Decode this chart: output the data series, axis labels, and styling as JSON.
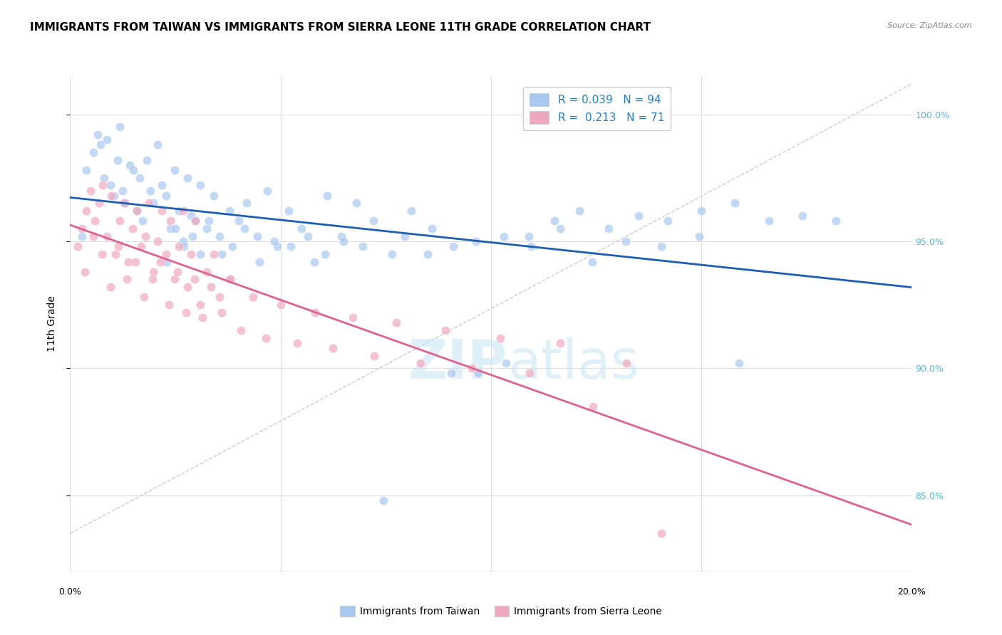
{
  "title": "IMMIGRANTS FROM TAIWAN VS IMMIGRANTS FROM SIERRA LEONE 11TH GRADE CORRELATION CHART",
  "source": "Source: ZipAtlas.com",
  "ylabel": "11th Grade",
  "y_ticks": [
    85.0,
    90.0,
    95.0,
    100.0
  ],
  "y_tick_labels": [
    "85.0%",
    "90.0%",
    "95.0%",
    "100.0%"
  ],
  "x_range": [
    0.0,
    20.0
  ],
  "y_range": [
    82.0,
    101.5
  ],
  "taiwan_R": 0.039,
  "taiwan_N": 94,
  "sierra_leone_R": 0.213,
  "sierra_leone_N": 71,
  "taiwan_color": "#a8c8f0",
  "sierra_leone_color": "#f0a8c0",
  "taiwan_line_color": "#1a5fb4",
  "sierra_leone_line_color": "#e06090",
  "legend_r_color": "#1a7fd4",
  "background_color": "#ffffff",
  "taiwan_x": [
    0.28,
    0.38,
    0.55,
    0.65,
    0.72,
    0.8,
    0.88,
    0.95,
    1.05,
    1.12,
    1.18,
    1.25,
    1.32,
    1.42,
    1.5,
    1.58,
    1.65,
    1.72,
    1.82,
    1.9,
    1.98,
    2.08,
    2.18,
    2.28,
    2.38,
    2.48,
    2.58,
    2.68,
    2.78,
    2.88,
    2.98,
    3.1,
    3.25,
    3.42,
    3.6,
    3.78,
    4.0,
    4.2,
    4.45,
    4.68,
    4.92,
    5.2,
    5.5,
    5.8,
    6.1,
    6.45,
    6.8,
    7.2,
    7.65,
    8.1,
    8.6,
    9.1,
    9.7,
    10.35,
    10.9,
    11.5,
    12.1,
    12.8,
    13.5,
    14.2,
    15.0,
    15.8,
    16.6,
    17.4,
    18.2,
    2.3,
    2.5,
    2.7,
    2.9,
    3.1,
    3.3,
    3.55,
    3.85,
    4.15,
    4.5,
    4.85,
    5.25,
    5.65,
    6.05,
    6.5,
    6.95,
    7.45,
    7.95,
    8.5,
    9.05,
    9.65,
    10.3,
    10.95,
    11.65,
    12.4,
    13.2,
    14.05,
    14.95,
    15.9
  ],
  "taiwan_y": [
    95.2,
    97.8,
    98.5,
    99.2,
    98.8,
    97.5,
    99.0,
    97.2,
    96.8,
    98.2,
    99.5,
    97.0,
    96.5,
    98.0,
    97.8,
    96.2,
    97.5,
    95.8,
    98.2,
    97.0,
    96.5,
    98.8,
    97.2,
    96.8,
    95.5,
    97.8,
    96.2,
    95.0,
    97.5,
    96.0,
    95.8,
    97.2,
    95.5,
    96.8,
    94.5,
    96.2,
    95.8,
    96.5,
    95.2,
    97.0,
    94.8,
    96.2,
    95.5,
    94.2,
    96.8,
    95.2,
    96.5,
    95.8,
    94.5,
    96.2,
    95.5,
    94.8,
    89.8,
    90.2,
    95.2,
    95.8,
    96.2,
    95.5,
    96.0,
    95.8,
    96.2,
    96.5,
    95.8,
    96.0,
    95.8,
    94.2,
    95.5,
    94.8,
    95.2,
    94.5,
    95.8,
    95.2,
    94.8,
    95.5,
    94.2,
    95.0,
    94.8,
    95.2,
    94.5,
    95.0,
    94.8,
    84.8,
    95.2,
    94.5,
    89.8,
    95.0,
    95.2,
    94.8,
    95.5,
    94.2,
    95.0,
    94.8,
    95.2,
    90.2
  ],
  "sierra_leone_x": [
    0.18,
    0.28,
    0.38,
    0.48,
    0.58,
    0.68,
    0.78,
    0.88,
    0.98,
    1.08,
    1.18,
    1.28,
    1.38,
    1.48,
    1.58,
    1.68,
    1.78,
    1.88,
    1.98,
    2.08,
    2.18,
    2.28,
    2.38,
    2.48,
    2.58,
    2.68,
    2.78,
    2.88,
    2.98,
    3.1,
    3.25,
    3.42,
    3.6,
    3.78,
    0.35,
    0.55,
    0.75,
    0.95,
    1.15,
    1.35,
    1.55,
    1.75,
    1.95,
    2.15,
    2.35,
    2.55,
    2.75,
    2.95,
    3.15,
    3.35,
    3.55,
    3.8,
    4.05,
    4.35,
    4.65,
    5.0,
    5.4,
    5.82,
    6.25,
    6.72,
    7.22,
    7.75,
    8.32,
    8.92,
    9.55,
    10.22,
    10.92,
    11.65,
    12.42,
    13.22,
    14.05
  ],
  "sierra_leone_y": [
    94.8,
    95.5,
    96.2,
    97.0,
    95.8,
    96.5,
    97.2,
    95.2,
    96.8,
    94.5,
    95.8,
    96.5,
    94.2,
    95.5,
    96.2,
    94.8,
    95.2,
    96.5,
    93.8,
    95.0,
    96.2,
    94.5,
    95.8,
    93.5,
    94.8,
    96.2,
    93.2,
    94.5,
    95.8,
    92.5,
    93.8,
    94.5,
    92.2,
    93.5,
    93.8,
    95.2,
    94.5,
    93.2,
    94.8,
    93.5,
    94.2,
    92.8,
    93.5,
    94.2,
    92.5,
    93.8,
    92.2,
    93.5,
    92.0,
    93.2,
    92.8,
    93.5,
    91.5,
    92.8,
    91.2,
    92.5,
    91.0,
    92.2,
    90.8,
    92.0,
    90.5,
    91.8,
    90.2,
    91.5,
    90.0,
    91.2,
    89.8,
    91.0,
    88.5,
    90.2,
    83.5
  ],
  "watermark_zip": "ZIP",
  "watermark_atlas": "atlas",
  "title_fontsize": 11,
  "axis_label_fontsize": 10,
  "tick_fontsize": 9,
  "dot_size": 80,
  "dot_alpha": 0.7,
  "dot_linewidth": 0.5,
  "dot_edgecolor": "#ffffff"
}
